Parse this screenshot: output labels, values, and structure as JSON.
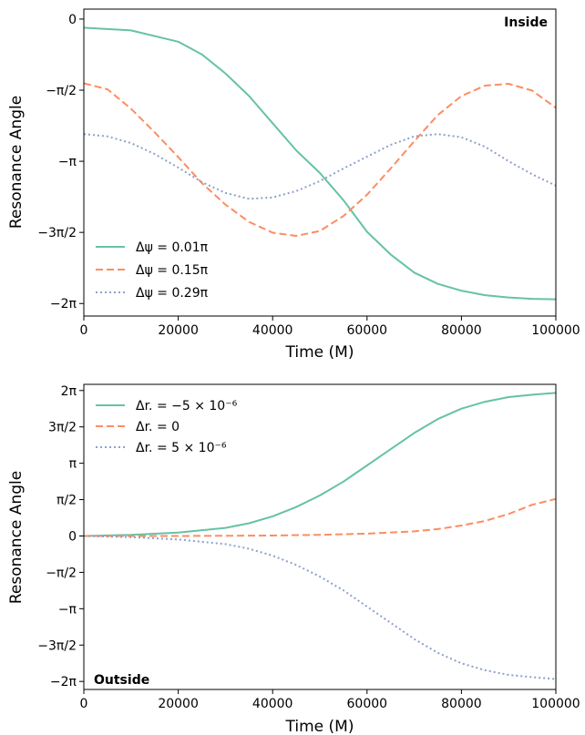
{
  "chart_data": [
    {
      "type": "line",
      "annotation": "Inside",
      "xlabel": "Time (M)",
      "ylabel": "Resonance Angle",
      "xlim": [
        0,
        100000
      ],
      "ylim": [
        -6.56,
        0.22
      ],
      "xticks": [
        0,
        20000,
        40000,
        60000,
        80000,
        100000
      ],
      "xtick_labels": [
        "0",
        "20000",
        "40000",
        "60000",
        "80000",
        "100000"
      ],
      "yticks": [
        0,
        -1.5708,
        -3.1416,
        -4.7124,
        -6.2832
      ],
      "ytick_labels": [
        "0",
        "−π/2",
        "−π",
        "−3π/2",
        "−2π"
      ],
      "grid": false,
      "legend_position": "lower-left",
      "series": [
        {
          "name": "Δψ = 0.01π",
          "color": "#66c2a5",
          "style": "solid",
          "x": [
            0,
            10000,
            20000,
            25000,
            30000,
            35000,
            40000,
            45000,
            50000,
            55000,
            60000,
            65000,
            70000,
            75000,
            80000,
            85000,
            90000,
            95000,
            100000
          ],
          "y": [
            -0.19,
            -0.25,
            -0.5,
            -0.78,
            -1.2,
            -1.7,
            -2.3,
            -2.9,
            -3.4,
            -4.0,
            -4.7,
            -5.2,
            -5.6,
            -5.85,
            -6.0,
            -6.1,
            -6.15,
            -6.18,
            -6.19
          ]
        },
        {
          "name": "Δψ = 0.15π",
          "color": "#fc8d62",
          "style": "dashed",
          "x": [
            0,
            5000,
            10000,
            15000,
            20000,
            25000,
            30000,
            35000,
            40000,
            45000,
            50000,
            55000,
            60000,
            65000,
            70000,
            75000,
            80000,
            85000,
            90000,
            95000,
            100000
          ],
          "y": [
            -1.42,
            -1.55,
            -1.98,
            -2.5,
            -3.05,
            -3.62,
            -4.1,
            -4.48,
            -4.72,
            -4.79,
            -4.68,
            -4.35,
            -3.88,
            -3.3,
            -2.7,
            -2.12,
            -1.7,
            -1.47,
            -1.43,
            -1.58,
            -1.96
          ]
        },
        {
          "name": "Δψ = 0.29π",
          "color": "#8da0cb",
          "style": "dotted",
          "x": [
            0,
            5000,
            10000,
            15000,
            20000,
            25000,
            30000,
            35000,
            40000,
            45000,
            50000,
            55000,
            60000,
            65000,
            70000,
            75000,
            80000,
            85000,
            90000,
            95000,
            100000
          ],
          "y": [
            -2.54,
            -2.59,
            -2.74,
            -2.98,
            -3.28,
            -3.6,
            -3.84,
            -3.97,
            -3.94,
            -3.8,
            -3.58,
            -3.3,
            -3.04,
            -2.78,
            -2.59,
            -2.54,
            -2.61,
            -2.82,
            -3.14,
            -3.43,
            -3.68
          ]
        }
      ]
    },
    {
      "type": "line",
      "annotation": "Outside",
      "xlabel": "Time (M)",
      "ylabel": "Resonance Angle",
      "xlim": [
        0,
        100000
      ],
      "ylim": [
        -6.63,
        6.55
      ],
      "xticks": [
        0,
        20000,
        40000,
        60000,
        80000,
        100000
      ],
      "xtick_labels": [
        "0",
        "20000",
        "40000",
        "60000",
        "80000",
        "100000"
      ],
      "yticks": [
        6.2832,
        4.7124,
        3.1416,
        1.5708,
        0,
        -1.5708,
        -3.1416,
        -4.7124,
        -6.2832
      ],
      "ytick_labels": [
        "2π",
        "3π/2",
        "π",
        "π/2",
        "0",
        "−π/2",
        "−π",
        "−3π/2",
        "−2π"
      ],
      "grid": false,
      "legend_position": "upper-left",
      "series": [
        {
          "name": "Δr. = −5 × 10⁻⁶",
          "color": "#66c2a5",
          "style": "solid",
          "x": [
            0,
            10000,
            20000,
            30000,
            35000,
            40000,
            45000,
            50000,
            55000,
            60000,
            65000,
            70000,
            75000,
            80000,
            85000,
            90000,
            95000,
            100000
          ],
          "y": [
            0.0,
            0.05,
            0.15,
            0.35,
            0.55,
            0.85,
            1.25,
            1.75,
            2.35,
            3.05,
            3.75,
            4.45,
            5.05,
            5.5,
            5.8,
            6.0,
            6.1,
            6.18
          ]
        },
        {
          "name": "Δr. = 0",
          "color": "#fc8d62",
          "style": "dashed",
          "x": [
            0,
            20000,
            40000,
            50000,
            60000,
            70000,
            75000,
            80000,
            85000,
            90000,
            95000,
            100000
          ],
          "y": [
            0.0,
            0.0,
            0.02,
            0.05,
            0.1,
            0.2,
            0.3,
            0.45,
            0.65,
            0.95,
            1.35,
            1.6
          ]
        },
        {
          "name": "Δr. = 5 × 10⁻⁶",
          "color": "#8da0cb",
          "style": "dotted",
          "x": [
            0,
            10000,
            20000,
            30000,
            35000,
            40000,
            45000,
            50000,
            55000,
            60000,
            65000,
            70000,
            75000,
            80000,
            85000,
            90000,
            95000,
            100000
          ],
          "y": [
            0.0,
            -0.05,
            -0.15,
            -0.35,
            -0.55,
            -0.85,
            -1.25,
            -1.75,
            -2.35,
            -3.05,
            -3.75,
            -4.45,
            -5.05,
            -5.5,
            -5.8,
            -6.0,
            -6.1,
            -6.18
          ]
        }
      ]
    }
  ]
}
